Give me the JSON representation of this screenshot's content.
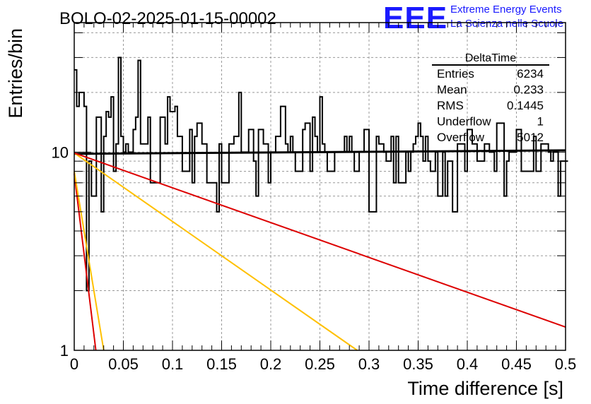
{
  "header": {
    "run_title": "BOLO-02-2025-01-15-00002",
    "logo_text": "EEE",
    "project_line1": "Extreme Energy Events",
    "project_line2": "La Scienza nelle Scuole"
  },
  "colors": {
    "logo_blue": "#1a1aff",
    "histogram": "#000000",
    "fit_line": "#000000",
    "exp_red": "#dd0000",
    "exp_yellow": "#ffc000",
    "grid": "#999999"
  },
  "stats_box": {
    "title": "DeltaTime",
    "rows": [
      {
        "label": "Entries",
        "value": "6234"
      },
      {
        "label": "Mean",
        "value": "0.233"
      },
      {
        "label": "RMS",
        "value": "0.1445"
      },
      {
        "label": "Underflow",
        "value": "1"
      },
      {
        "label": "Overflow",
        "value": "5012"
      }
    ]
  },
  "chart_data": {
    "type": "line",
    "title": "BOLO-02-2025-01-15-00002",
    "xlabel": "Time difference [s]",
    "ylabel": "Entries/bin",
    "xlim": [
      0,
      0.5
    ],
    "ylim": [
      1,
      45
    ],
    "y_log": true,
    "grid": true,
    "x_ticks": [
      "0",
      "0.05",
      "0.1",
      "0.15",
      "0.2",
      "0.25",
      "0.3",
      "0.35",
      "0.4",
      "0.45",
      "0.5"
    ],
    "x_tick_values": [
      0,
      0.05,
      0.1,
      0.15,
      0.2,
      0.25,
      0.3,
      0.35,
      0.4,
      0.45,
      0.5
    ],
    "y_ticks": [
      "1",
      "10"
    ],
    "y_tick_values": [
      1,
      10
    ],
    "histogram": {
      "bin_width": 0.0025,
      "values": [
        26,
        17,
        20,
        20,
        17,
        2,
        9,
        6,
        6,
        15,
        15,
        5,
        12,
        16,
        15,
        19,
        8,
        11,
        30,
        12,
        10,
        11,
        10,
        10,
        13,
        15,
        29,
        11,
        11,
        11,
        15,
        7,
        7,
        7,
        7,
        15,
        15,
        11,
        19,
        16,
        16,
        17,
        12,
        12,
        8,
        8,
        8,
        13,
        7,
        12,
        14,
        14,
        11,
        11,
        7,
        7,
        7,
        7,
        5,
        11,
        7,
        7,
        7,
        11,
        11,
        12,
        12,
        20,
        10,
        10,
        10,
        13,
        13,
        9,
        6,
        13,
        13,
        11,
        11,
        7,
        10,
        10,
        12,
        12,
        17,
        17,
        11,
        10,
        12,
        10,
        8,
        8,
        8,
        13,
        14,
        14,
        8,
        15,
        12,
        10,
        19,
        11,
        10,
        8,
        8,
        8,
        10,
        10,
        10,
        10,
        12,
        10,
        12,
        10,
        8,
        8,
        10,
        10,
        13,
        13,
        5,
        5,
        5,
        12,
        11,
        11,
        10,
        9,
        9,
        12,
        7,
        12,
        7,
        7,
        7,
        10,
        8,
        10,
        11,
        12,
        14,
        12,
        9,
        12,
        9,
        8,
        8,
        10,
        6,
        6,
        10,
        6,
        9,
        9,
        5,
        5,
        11,
        11,
        11,
        8,
        13,
        13,
        11,
        11,
        9,
        9,
        9,
        11,
        11,
        10,
        10,
        8,
        14,
        14,
        14,
        6,
        9,
        10,
        10,
        10,
        13,
        13,
        8,
        8,
        8,
        8,
        8,
        12,
        8,
        8,
        11,
        11,
        11,
        10,
        9,
        10,
        10,
        6,
        9,
        9,
        9
      ]
    },
    "series": [
      {
        "kind": "flat-fit",
        "color": "#000000",
        "x": [
          0,
          0.5
        ],
        "y": [
          9.8,
          10.2
        ]
      },
      {
        "kind": "exp-fast",
        "color": "#dd0000",
        "x": [
          0,
          0.022
        ],
        "y": [
          7.8,
          1.0
        ]
      },
      {
        "kind": "exp-fast",
        "color": "#ffc000",
        "x": [
          0,
          0.03
        ],
        "y": [
          8.0,
          1.0
        ]
      },
      {
        "kind": "exp-slow",
        "color": "#ffc000",
        "x": [
          0,
          0.288
        ],
        "y": [
          9.9,
          1.0
        ]
      },
      {
        "kind": "exp-slow",
        "color": "#dd0000",
        "x": [
          0,
          0.5
        ],
        "y": [
          9.9,
          1.31
        ]
      }
    ]
  }
}
